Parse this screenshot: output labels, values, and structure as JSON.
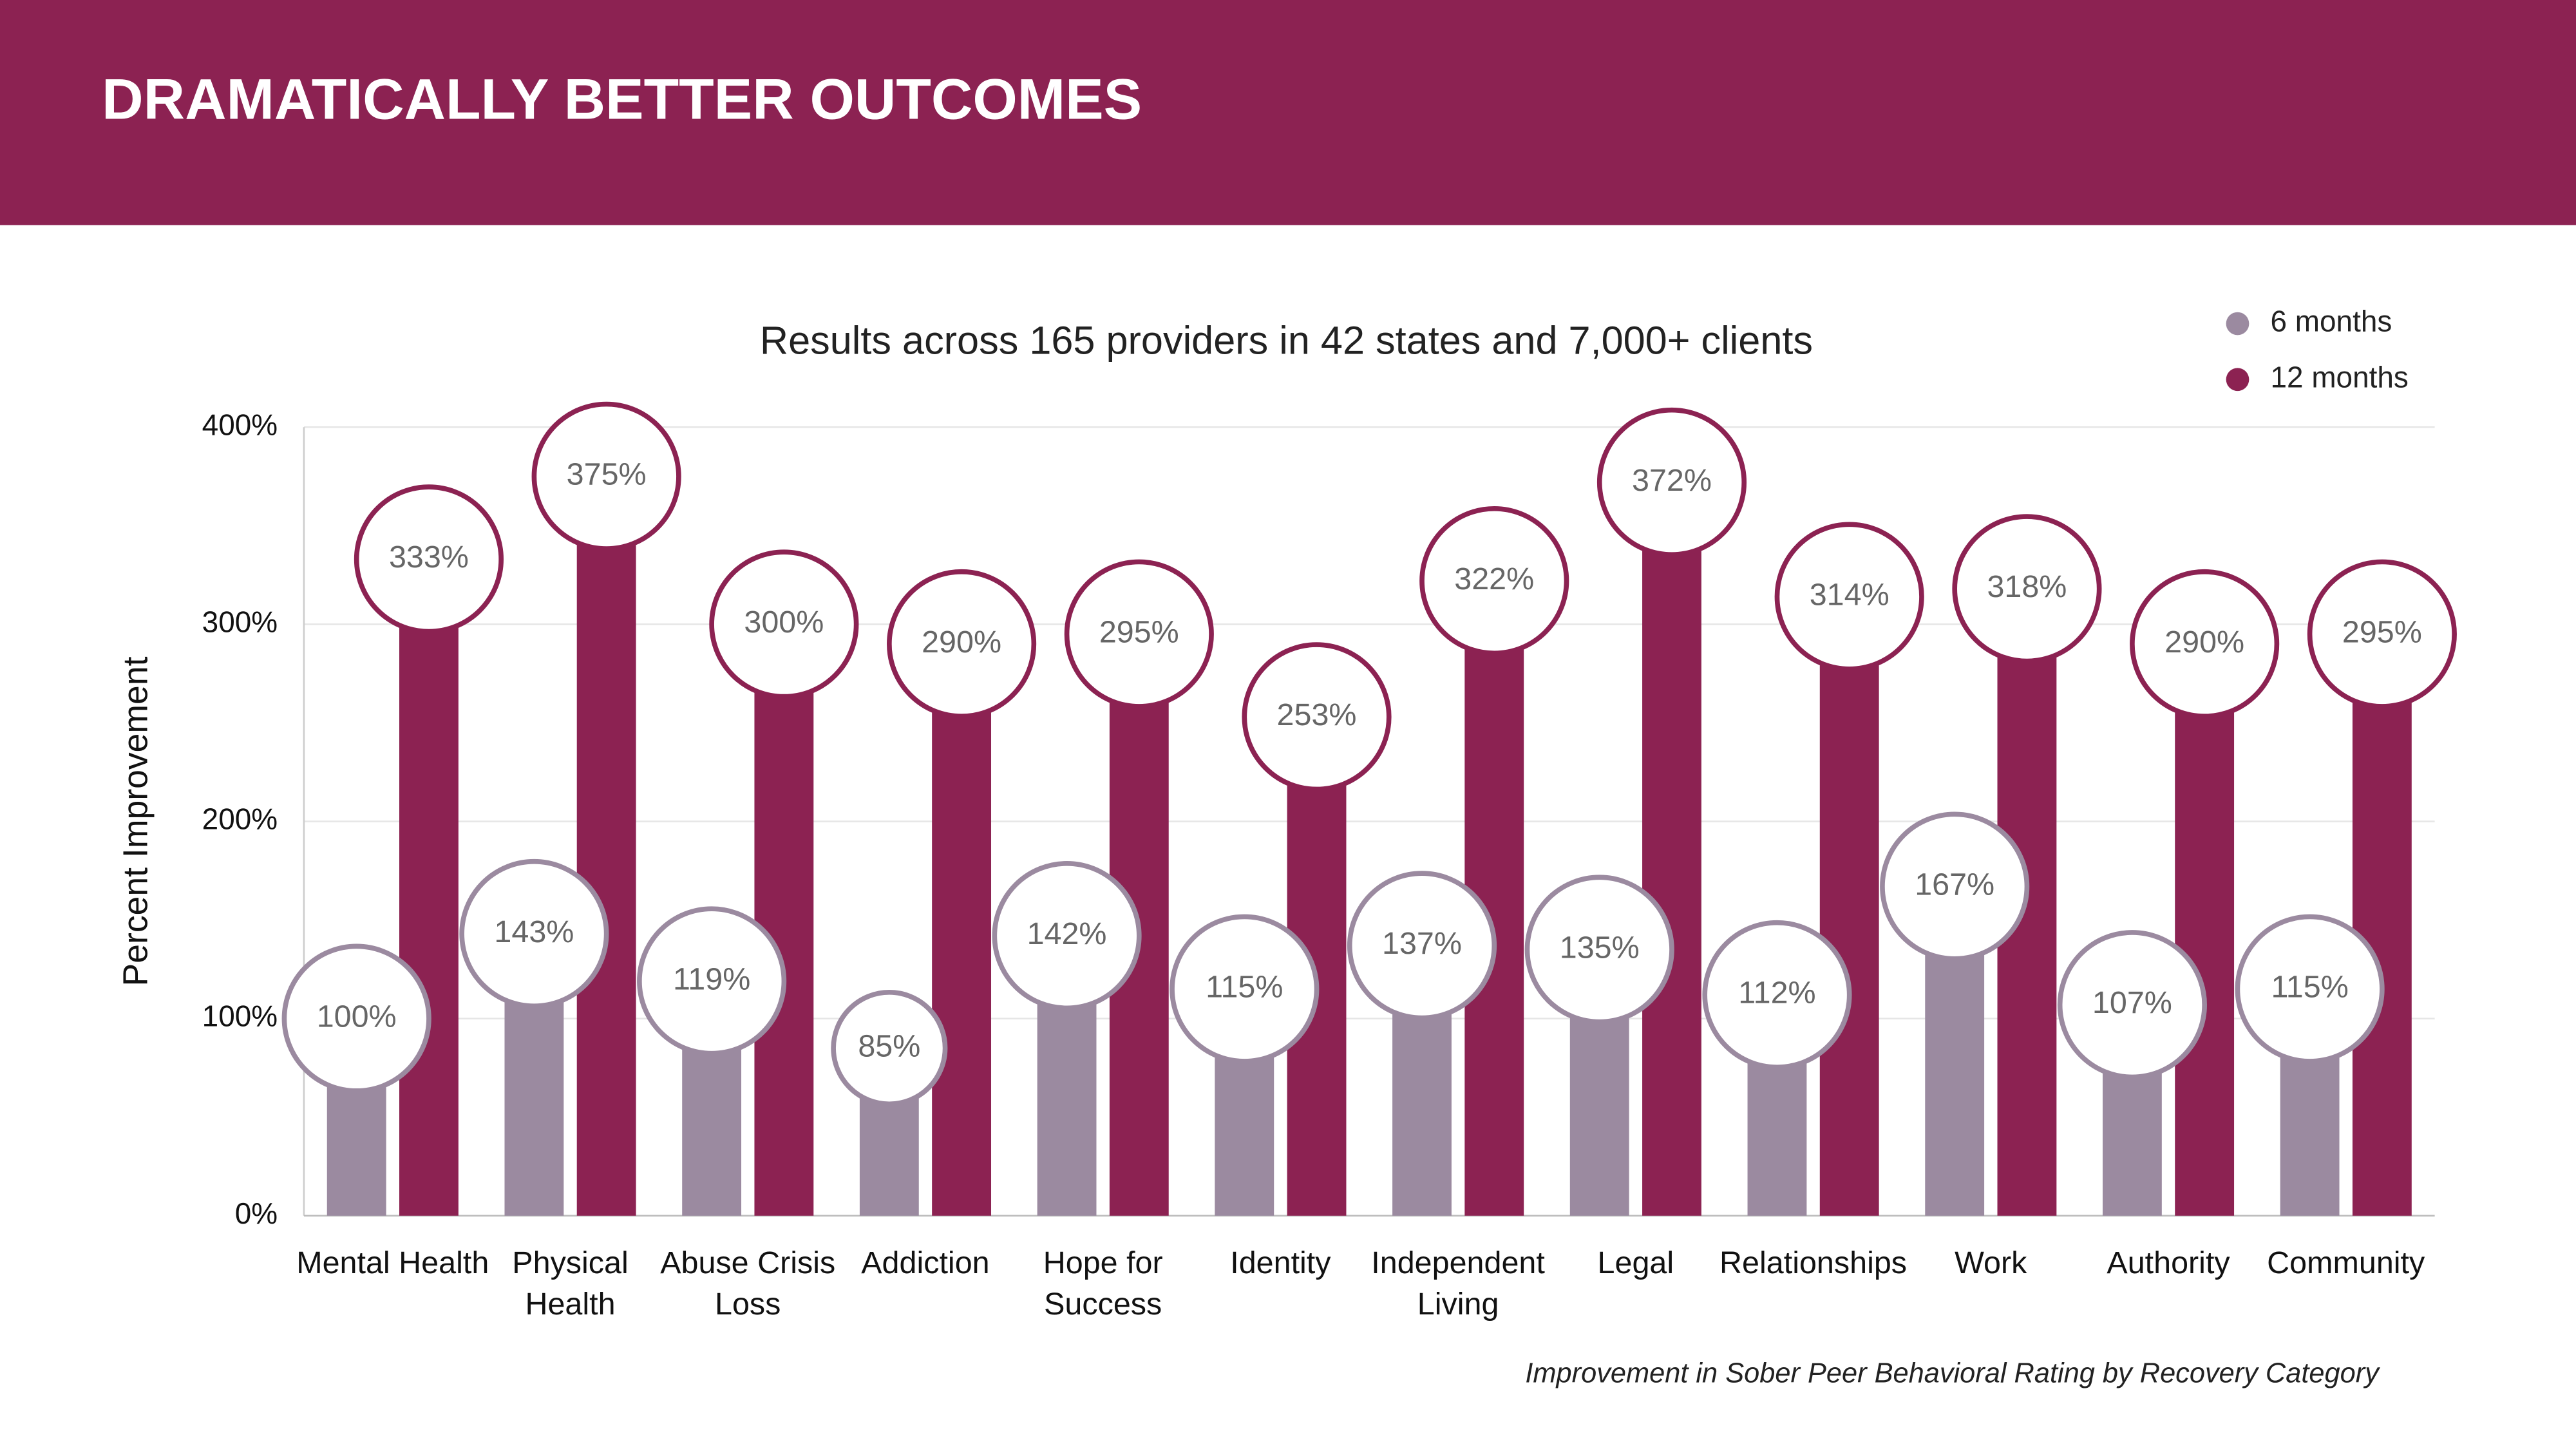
{
  "header": {
    "title": "DRAMATICALLY BETTER OUTCOMES"
  },
  "chart_data": {
    "type": "bar",
    "title": "Results across 165 providers in 42 states and 7,000+ clients",
    "y_label": "Percent Improvement",
    "caption": "Improvement in Sober Peer Behavioral Rating by Recovery Category",
    "categories": [
      "Mental Health",
      "Physical Health",
      "Abuse Crisis Loss",
      "Addiction",
      "Hope for Success",
      "Identity",
      "Independent Living",
      "Legal",
      "Relationships",
      "Work",
      "Authority",
      "Community"
    ],
    "series": [
      {
        "name": "6 months",
        "color": "#9b8aa0",
        "values": [
          100,
          143,
          119,
          85,
          142,
          115,
          137,
          135,
          112,
          167,
          107,
          115
        ],
        "value_labels": [
          "100%",
          "143%",
          "119%",
          "85%",
          "142%",
          "115%",
          "137%",
          "135%",
          "112%",
          "167%",
          "107%",
          "115%"
        ]
      },
      {
        "name": "12 months",
        "color": "#8c2252",
        "values": [
          333,
          375,
          300,
          290,
          295,
          253,
          322,
          372,
          314,
          318,
          290,
          295
        ],
        "value_labels": [
          "333%",
          "375%",
          "300%",
          "290%",
          "295%",
          "253%",
          "322%",
          "372%",
          "314%",
          "318%",
          "290%",
          "295%"
        ]
      }
    ],
    "ylim": [
      0,
      400
    ],
    "yticks": [
      {
        "value": 0,
        "label": "0%"
      },
      {
        "value": 100,
        "label": "100%"
      },
      {
        "value": 200,
        "label": "200%"
      },
      {
        "value": 300,
        "label": "300%"
      },
      {
        "value": 400,
        "label": "400%"
      }
    ],
    "grid": true,
    "legend": "top-right"
  }
}
